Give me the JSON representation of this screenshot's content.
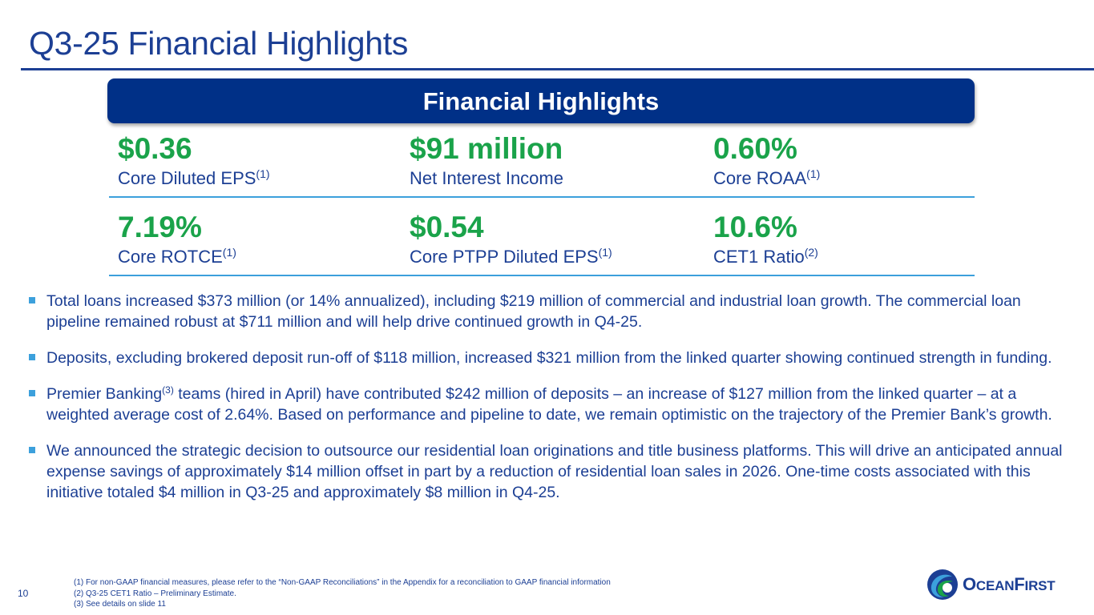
{
  "slide": {
    "title": "Q3-25 Financial Highlights",
    "page_number": "10"
  },
  "banner": {
    "title": "Financial Highlights"
  },
  "metrics": [
    {
      "value": "$0.36",
      "label": "Core Diluted EPS",
      "note": "(1)"
    },
    {
      "value": "$91 million",
      "label": "Net Interest Income",
      "note": ""
    },
    {
      "value": "0.60%",
      "label": "Core ROAA",
      "note": "(1)"
    },
    {
      "value": "7.19%",
      "label": "Core ROTCE",
      "note": "(1)"
    },
    {
      "value": "$0.54",
      "label": "Core PTPP Diluted EPS",
      "note": "(1)"
    },
    {
      "value": "10.6%",
      "label": "CET1 Ratio",
      "note": "(2)"
    }
  ],
  "bullets": [
    {
      "text": "Total loans increased $373 million (or 14% annualized), including $219 million of commercial and industrial loan growth. The commercial loan pipeline remained robust at $711 million and will help drive continued growth in Q4-25."
    },
    {
      "text": "Deposits, excluding brokered deposit run-off of $118 million, increased $321 million from the linked quarter showing continued strength in funding."
    },
    {
      "text_before": "Premier Banking",
      "note": "(3)",
      "text_after": " teams (hired in April) have contributed $242 million of deposits – an increase of $127 million from the linked quarter – at a weighted average cost of 2.64%. Based on performance and pipeline to date, we remain optimistic on the trajectory of the Premier Bank’s growth."
    },
    {
      "text": "We announced the strategic decision to outsource our residential loan originations and title business platforms. This will drive an anticipated annual expense savings of approximately $14 million offset in part by a reduction of residential loan sales in 2026. One-time costs associated with this initiative totaled $4 million in Q3-25 and approximately $8 million in Q4-25."
    }
  ],
  "footnotes": [
    "(1) For non-GAAP financial measures, please refer to the “Non-GAAP Reconciliations” in the Appendix for a reconciliation to GAAP financial information",
    "(2) Q3-25 CET1 Ratio – Preliminary Estimate.",
    "(3) See details on slide 11"
  ],
  "logo": {
    "word_prefix": "O",
    "word_small_1": "CEAN",
    "word_big": "F",
    "word_small_2": "IRST",
    "icon": "oceanfirst-wave-icon"
  },
  "colors": {
    "brand_navy": "#003087",
    "title_blue": "#1c3f94",
    "value_green": "#1aa34a",
    "accent_blue": "#3ca0dc"
  }
}
